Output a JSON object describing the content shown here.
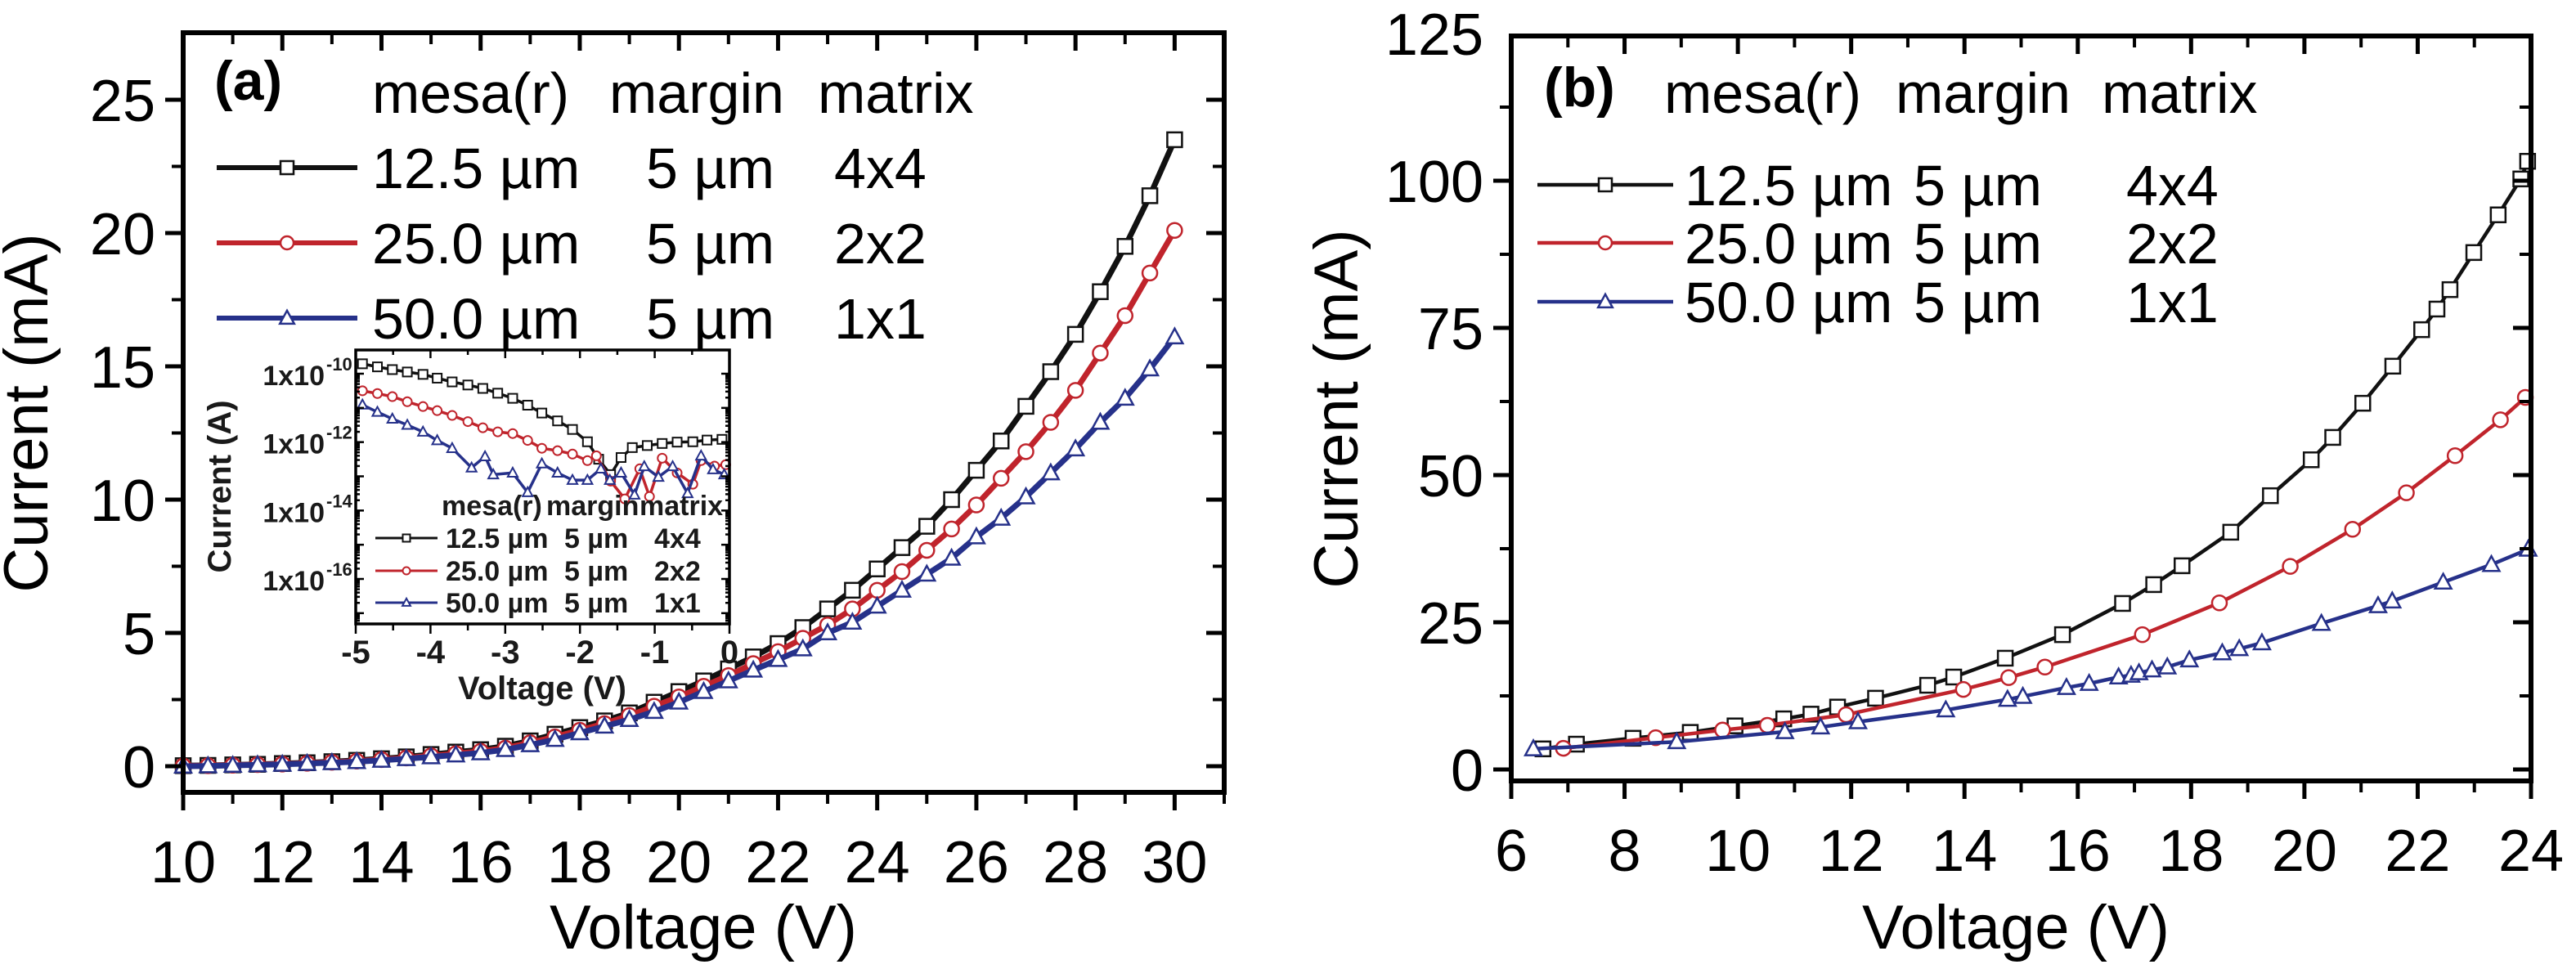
{
  "figure": {
    "colors": {
      "series_1": "#111111",
      "series_2": "#c0242c",
      "series_3": "#26318a",
      "axis": "#000000",
      "background": "#ffffff"
    }
  },
  "chart_data": [
    {
      "id": "a",
      "type": "line",
      "panel_label": "(a)",
      "title": "",
      "xlabel": "Voltage (V)",
      "ylabel": "Current (mA)",
      "xlim": [
        10,
        31
      ],
      "ylim": [
        -1,
        27
      ],
      "xticks": [
        10,
        12,
        14,
        16,
        18,
        20,
        22,
        24,
        26,
        28,
        30
      ],
      "xtick_labels": [
        "10",
        "12",
        "14",
        "16",
        "18",
        "20",
        "22",
        "24",
        "26",
        "28",
        "30"
      ],
      "yticks": [
        0,
        5,
        10,
        15,
        20,
        25
      ],
      "ytick_labels": [
        "0",
        "5",
        "10",
        "15",
        "20",
        "25"
      ],
      "grid": false,
      "legend": {
        "placement": "top-left",
        "header": [
          "mesa(r)",
          "margin",
          "matrix"
        ],
        "entries": [
          {
            "cols": [
              "12.5 µm",
              "5 µm",
              "4x4"
            ],
            "marker": "square"
          },
          {
            "cols": [
              "25.0 µm",
              "5 µm",
              "2x2"
            ],
            "marker": "circle"
          },
          {
            "cols": [
              "50.0 µm",
              "5 µm",
              "1x1"
            ],
            "marker": "triangle"
          }
        ]
      },
      "series": [
        {
          "name": "12.5 µm 5 µm 4x4",
          "color": "#111111",
          "marker": "square",
          "x": [
            10,
            10.5,
            11,
            11.5,
            12,
            12.5,
            13,
            13.5,
            14,
            14.5,
            15,
            15.5,
            16,
            16.5,
            17,
            17.5,
            18,
            18.5,
            19,
            19.5,
            20,
            20.5,
            21,
            21.5,
            22,
            22.5,
            23,
            23.5,
            24,
            24.5,
            25,
            25.5,
            26,
            26.5,
            27,
            27.5,
            28,
            28.5,
            29,
            29.5,
            30
          ],
          "y": [
            0.02,
            0.03,
            0.05,
            0.07,
            0.1,
            0.13,
            0.17,
            0.22,
            0.28,
            0.35,
            0.44,
            0.53,
            0.62,
            0.75,
            0.95,
            1.2,
            1.45,
            1.7,
            2.0,
            2.4,
            2.8,
            3.2,
            3.65,
            4.1,
            4.6,
            5.2,
            5.9,
            6.6,
            7.4,
            8.2,
            9.0,
            10.0,
            11.1,
            12.2,
            13.5,
            14.8,
            16.2,
            17.8,
            19.5,
            21.4,
            23.5
          ]
        },
        {
          "name": "25.0 µm 5 µm 2x2",
          "color": "#c0242c",
          "marker": "circle",
          "x": [
            10,
            10.5,
            11,
            11.5,
            12,
            12.5,
            13,
            13.5,
            14,
            14.5,
            15,
            15.5,
            16,
            16.5,
            17,
            17.5,
            18,
            18.5,
            19,
            19.5,
            20,
            20.5,
            21,
            21.5,
            22,
            22.5,
            23,
            23.5,
            24,
            24.5,
            25,
            25.5,
            26,
            26.5,
            27,
            27.5,
            28,
            28.5,
            29,
            29.5,
            30
          ],
          "y": [
            0.01,
            0.02,
            0.04,
            0.06,
            0.08,
            0.11,
            0.15,
            0.19,
            0.25,
            0.31,
            0.39,
            0.47,
            0.56,
            0.68,
            0.88,
            1.1,
            1.35,
            1.6,
            1.9,
            2.25,
            2.6,
            3.0,
            3.4,
            3.85,
            4.3,
            4.8,
            5.3,
            5.9,
            6.6,
            7.3,
            8.1,
            8.9,
            9.8,
            10.8,
            11.8,
            12.9,
            14.1,
            15.5,
            16.9,
            18.5,
            20.1
          ]
        },
        {
          "name": "50.0 µm 5 µm 1x1",
          "color": "#26318a",
          "marker": "triangle",
          "x": [
            10,
            10.5,
            11,
            11.5,
            12,
            12.5,
            13,
            13.5,
            14,
            14.5,
            15,
            15.5,
            16,
            16.5,
            17,
            17.5,
            18,
            18.5,
            19,
            19.5,
            20,
            20.5,
            21,
            21.5,
            22,
            22.5,
            23,
            23.5,
            24,
            24.5,
            25,
            25.5,
            26,
            26.5,
            27,
            27.5,
            28,
            28.5,
            29,
            29.5,
            30
          ],
          "y": [
            0.0,
            0.01,
            0.03,
            0.05,
            0.07,
            0.1,
            0.13,
            0.17,
            0.22,
            0.28,
            0.35,
            0.42,
            0.5,
            0.62,
            0.8,
            1.0,
            1.25,
            1.5,
            1.75,
            2.05,
            2.4,
            2.8,
            3.2,
            3.6,
            4.0,
            4.4,
            5.0,
            5.4,
            6.0,
            6.6,
            7.2,
            7.8,
            8.6,
            9.3,
            10.1,
            11.0,
            11.9,
            12.9,
            13.8,
            14.9,
            16.1
          ]
        }
      ],
      "inset": {
        "type": "line",
        "xlabel": "Voltage (V)",
        "ylabel": "Current (A)",
        "yscale": "log",
        "xlim": [
          -5,
          0
        ],
        "ylim": [
          5e-18,
          5e-10
        ],
        "xticks": [
          -5,
          -4,
          -3,
          -2,
          -1,
          0
        ],
        "xtick_labels": [
          "-5",
          "-4",
          "-3",
          "-2",
          "-1",
          "0"
        ],
        "yticks": [
          1e-10,
          1e-12,
          1e-14,
          1e-16
        ],
        "ytick_labels": [
          {
            "base": "1x10",
            "exp": "-10"
          },
          {
            "base": "1x10",
            "exp": "-12"
          },
          {
            "base": "1x10",
            "exp": "-14"
          },
          {
            "base": "1x10",
            "exp": "-16"
          }
        ],
        "legend": {
          "placement": "bottom-center",
          "header": [
            "mesa(r)",
            "margin",
            "matrix"
          ],
          "entries": [
            {
              "cols": [
                "12.5 µm",
                "5 µm",
                "4x4"
              ],
              "marker": "square"
            },
            {
              "cols": [
                "25.0 µm",
                "5 µm",
                "2x2"
              ],
              "marker": "circle"
            },
            {
              "cols": [
                "50.0 µm",
                "5 µm",
                "1x1"
              ],
              "marker": "triangle"
            }
          ]
        },
        "series": [
          {
            "name": "12.5 µm 5 µm 4x4",
            "color": "#111111",
            "marker": "square",
            "x": [
              -4.91,
              -4.71,
              -4.51,
              -4.31,
              -4.1,
              -3.91,
              -3.71,
              -3.5,
              -3.3,
              -3.1,
              -2.9,
              -2.7,
              -2.51,
              -2.3,
              -2.1,
              -1.9,
              -1.75,
              -1.59,
              -1.45,
              -1.3,
              -1.1,
              -0.9,
              -0.7,
              -0.49,
              -0.3,
              -0.1
            ],
            "log10_y": [
              -9.71,
              -9.8,
              -9.88,
              -9.95,
              -10.02,
              -10.13,
              -10.24,
              -10.33,
              -10.43,
              -10.57,
              -10.72,
              -10.92,
              -11.15,
              -11.38,
              -11.63,
              -11.99,
              -12.5,
              -12.95,
              -12.45,
              -12.16,
              -12.1,
              -12.04,
              -12.0,
              -11.99,
              -11.94,
              -11.92
            ]
          },
          {
            "name": "25.0 µm 5 µm 2x2",
            "color": "#c0242c",
            "marker": "circle",
            "x": [
              -4.91,
              -4.71,
              -4.51,
              -4.31,
              -4.1,
              -3.91,
              -3.71,
              -3.5,
              -3.3,
              -3.1,
              -2.9,
              -2.7,
              -2.51,
              -2.3,
              -2.1,
              -1.9,
              -1.78,
              -1.59,
              -1.4,
              -1.2,
              -1.07,
              -0.9,
              -0.7,
              -0.49,
              -0.38,
              -0.2,
              -0.05
            ],
            "log10_y": [
              -10.5,
              -10.58,
              -10.67,
              -10.82,
              -10.96,
              -11.08,
              -11.22,
              -11.4,
              -11.58,
              -11.7,
              -11.75,
              -11.95,
              -12.18,
              -12.25,
              -12.35,
              -12.54,
              -12.4,
              -13.14,
              -13.66,
              -12.78,
              -13.59,
              -12.47,
              -12.9,
              -13.23,
              -12.54,
              -12.7,
              -12.66
            ]
          },
          {
            "name": "50.0 µm 5 µm 1x1",
            "color": "#26318a",
            "marker": "triangle",
            "x": [
              -4.91,
              -4.71,
              -4.51,
              -4.31,
              -4.1,
              -3.91,
              -3.71,
              -3.45,
              -3.27,
              -3.16,
              -2.9,
              -2.7,
              -2.51,
              -2.3,
              -2.1,
              -1.9,
              -1.72,
              -1.6,
              -1.45,
              -1.27,
              -1.14,
              -0.95,
              -0.76,
              -0.56,
              -0.38,
              -0.22,
              -0.07
            ],
            "log10_y": [
              -10.91,
              -11.12,
              -11.32,
              -11.5,
              -11.7,
              -11.95,
              -12.18,
              -12.75,
              -12.42,
              -12.95,
              -12.9,
              -13.47,
              -12.63,
              -12.9,
              -13.11,
              -13.11,
              -12.78,
              -13.11,
              -12.9,
              -13.54,
              -12.71,
              -13.02,
              -12.71,
              -13.5,
              -12.4,
              -12.8,
              -12.95
            ]
          }
        ]
      }
    },
    {
      "id": "b",
      "type": "line",
      "panel_label": "(b)",
      "title": "",
      "xlabel": "Voltage (V)",
      "ylabel": "Current (mA)",
      "xlim": [
        6,
        24
      ],
      "ylim": [
        -4,
        125
      ],
      "xticks": [
        6,
        8,
        10,
        12,
        14,
        16,
        18,
        20,
        22,
        24
      ],
      "xtick_labels": [
        "6",
        "8",
        "10",
        "12",
        "14",
        "16",
        "18",
        "20",
        "22",
        "24"
      ],
      "yticks": [
        0,
        25,
        50,
        75,
        100,
        125
      ],
      "ytick_labels": [
        "0",
        "25",
        "50",
        "75",
        "100",
        "125"
      ],
      "grid": false,
      "legend": {
        "placement": "top-left",
        "header": [
          "mesa(r)",
          "margin",
          "matrix"
        ],
        "entries": [
          {
            "cols": [
              "12.5 µm",
              "5 µm",
              "4x4"
            ],
            "marker": "square"
          },
          {
            "cols": [
              "25.0 µm",
              "5 µm",
              "2x2"
            ],
            "marker": "circle"
          },
          {
            "cols": [
              "50.0 µm",
              "5 µm",
              "1x1"
            ],
            "marker": "triangle"
          }
        ]
      },
      "series": [
        {
          "name": "12.5 µm 5 µm 4x4",
          "color": "#111111",
          "marker": "square",
          "x": [
            6.56,
            7.15,
            8.15,
            9.16,
            9.95,
            10.81,
            11.29,
            11.76,
            12.43,
            13.35,
            13.81,
            14.72,
            15.73,
            16.79,
            17.34,
            17.84,
            18.7,
            19.4,
            20.12,
            20.5,
            21.03,
            21.56,
            22.07,
            22.34,
            22.57,
            22.99,
            23.42,
            23.82,
            23.94
          ],
          "y": [
            3.5,
            4.3,
            5.3,
            6.3,
            7.4,
            8.6,
            9.4,
            10.6,
            12.1,
            14.3,
            15.7,
            18.9,
            22.9,
            28.2,
            31.4,
            34.6,
            40.3,
            46.5,
            52.6,
            56.4,
            62.2,
            68.5,
            74.7,
            78.2,
            81.5,
            87.8,
            94.2,
            100.3,
            103.3
          ]
        },
        {
          "name": "25.0 µm 5 µm 2x2",
          "color": "#c0242c",
          "marker": "circle",
          "x": [
            6.92,
            8.55,
            9.73,
            10.52,
            11.91,
            13.98,
            14.78,
            15.42,
            17.14,
            18.5,
            19.75,
            20.85,
            21.8,
            22.66,
            23.46,
            23.9
          ],
          "y": [
            3.6,
            5.4,
            6.7,
            7.5,
            9.3,
            13.6,
            15.6,
            17.4,
            22.9,
            28.3,
            34.5,
            40.8,
            47.0,
            53.3,
            59.4,
            63.2
          ]
        },
        {
          "name": "50.0 µm 5 µm 1x1",
          "color": "#26318a",
          "marker": "triangle",
          "x": [
            6.39,
            8.92,
            10.83,
            11.46,
            12.12,
            13.67,
            14.76,
            15.03,
            15.8,
            16.2,
            16.72,
            16.94,
            17.08,
            17.31,
            17.58,
            17.97,
            18.55,
            18.85,
            19.25,
            20.3,
            21.3,
            21.55,
            22.45,
            23.3,
            23.95
          ],
          "y": [
            3.5,
            4.7,
            6.4,
            7.2,
            8.1,
            10.1,
            11.9,
            12.4,
            13.9,
            14.6,
            15.7,
            16.0,
            16.4,
            16.9,
            17.4,
            18.6,
            19.8,
            20.5,
            21.5,
            24.8,
            27.8,
            28.6,
            31.8,
            34.8,
            37.4
          ]
        }
      ]
    }
  ]
}
